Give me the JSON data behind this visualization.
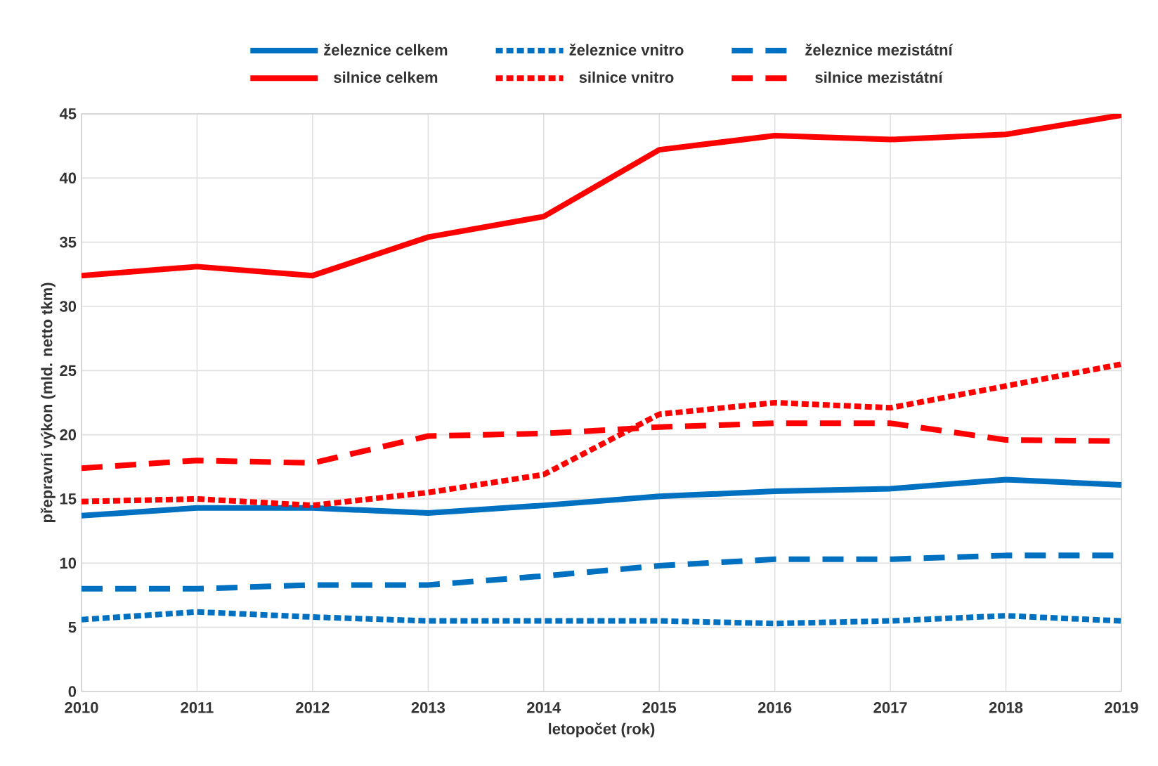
{
  "chart_data": {
    "type": "line",
    "xlabel": "letopočet (rok)",
    "ylabel": "přepravní výkon (mld. netto tkm)",
    "x": [
      2010,
      2011,
      2012,
      2013,
      2014,
      2015,
      2016,
      2017,
      2018,
      2019
    ],
    "xlim": [
      2010,
      2019
    ],
    "xticks": [
      2010,
      2011,
      2012,
      2013,
      2014,
      2015,
      2016,
      2017,
      2018,
      2019
    ],
    "ylim": [
      0,
      45
    ],
    "yticks": [
      0,
      5,
      10,
      15,
      20,
      25,
      30,
      35,
      40,
      45
    ],
    "grid": true,
    "legend": "top",
    "series": [
      {
        "name": "železnice celkem",
        "color": "#0070c0",
        "line_style": "solid",
        "values": [
          13.7,
          14.3,
          14.3,
          13.9,
          14.5,
          15.2,
          15.6,
          15.8,
          16.5,
          16.1
        ]
      },
      {
        "name": "železnice vnitro",
        "color": "#0070c0",
        "line_style": "dotted",
        "values": [
          5.6,
          6.2,
          5.8,
          5.5,
          5.5,
          5.5,
          5.3,
          5.5,
          5.9,
          5.5
        ]
      },
      {
        "name": "železnice mezistátní",
        "color": "#0070c0",
        "line_style": "dashed",
        "values": [
          8.0,
          8.0,
          8.3,
          8.3,
          9.0,
          9.8,
          10.3,
          10.3,
          10.6,
          10.6
        ]
      },
      {
        "name": "silnice celkem",
        "color": "#ff0000",
        "line_style": "solid",
        "values": [
          32.4,
          33.1,
          32.4,
          35.4,
          37.0,
          42.2,
          43.3,
          43.0,
          43.4,
          44.9
        ]
      },
      {
        "name": "silnice vnitro",
        "color": "#ff0000",
        "line_style": "dotted",
        "values": [
          14.8,
          15.0,
          14.5,
          15.5,
          16.9,
          21.6,
          22.5,
          22.1,
          23.8,
          25.5
        ]
      },
      {
        "name": "silnice mezistátní",
        "color": "#ff0000",
        "line_style": "dashed",
        "values": [
          17.4,
          18.0,
          17.8,
          19.9,
          20.1,
          20.6,
          20.9,
          20.9,
          19.6,
          19.5
        ]
      }
    ]
  }
}
